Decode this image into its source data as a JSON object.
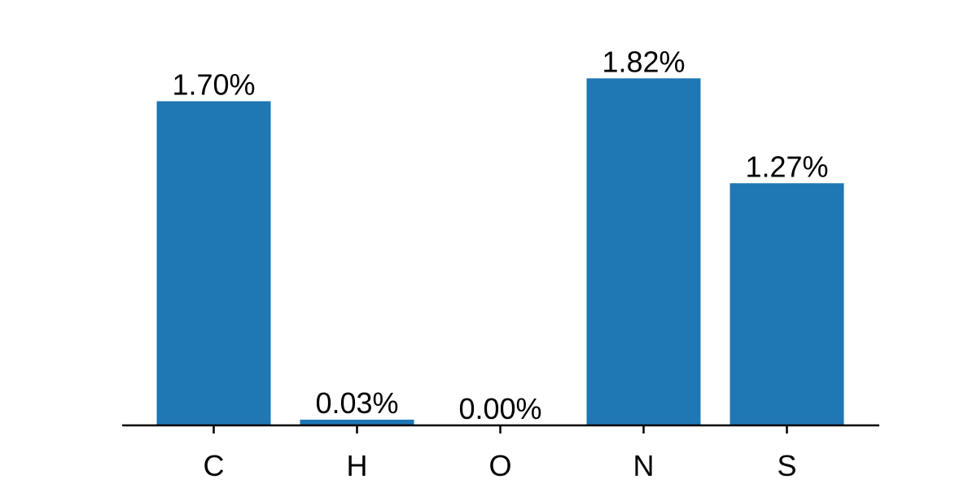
{
  "chart_data": {
    "type": "bar",
    "categories": [
      "C",
      "H",
      "O",
      "N",
      "S"
    ],
    "values": [
      1.7,
      0.03,
      0.0,
      1.82,
      1.27
    ],
    "value_labels": [
      "1.70%",
      "0.03%",
      "0.00%",
      "1.82%",
      "1.27%"
    ],
    "title": "",
    "xlabel": "",
    "ylabel": "",
    "ylim": [
      0,
      1.911
    ],
    "grid": false,
    "legend": "none",
    "y_axis_visible": false
  },
  "colors": {
    "bar": "#1f77b4",
    "axis": "#000000",
    "text": "#000000",
    "background": "#ffffff"
  }
}
